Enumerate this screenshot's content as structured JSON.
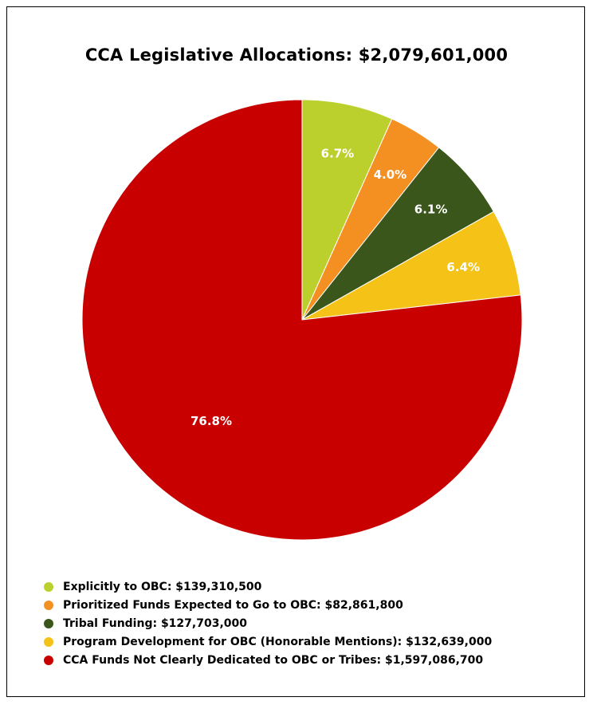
{
  "chart_data": {
    "type": "pie",
    "title": "CCA Legislative Allocations: $2,079,601,000",
    "slices": [
      {
        "label": "Explicitly to OBC: $139,310,500",
        "value": 139310500,
        "percent_label": "6.7%",
        "color": "#bcd02d"
      },
      {
        "label": "Prioritized Funds Expected to Go to OBC: $82,861,800",
        "value": 82861800,
        "percent_label": "4.0%",
        "color": "#f39021"
      },
      {
        "label": "Tribal Funding: $127,703,000",
        "value": 127703000,
        "percent_label": "6.1%",
        "color": "#3a561b"
      },
      {
        "label": "Program Development for OBC (Honorable Mentions): $132,639,000",
        "value": 132639000,
        "percent_label": "6.4%",
        "color": "#f5c317"
      },
      {
        "label": "CCA Funds Not Clearly Dedicated to OBC or Tribes: $1,597,086,700",
        "value": 1597086700,
        "percent_label": "76.8%",
        "color": "#c80000"
      }
    ],
    "start_angle": "12 o'clock",
    "direction": "clockwise",
    "legend_position": "bottom-left"
  }
}
